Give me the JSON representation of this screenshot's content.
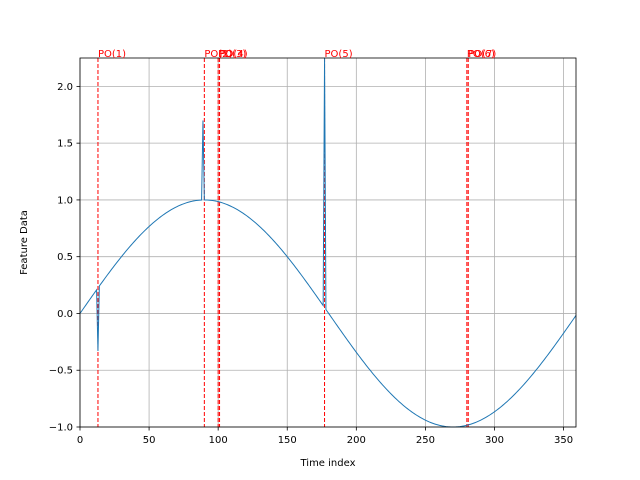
{
  "chart_data": {
    "type": "line",
    "title": "",
    "xlabel": "Time index",
    "ylabel": "Feature Data",
    "xlim": [
      0,
      359
    ],
    "ylim": [
      -1.0,
      2.25
    ],
    "grid": true,
    "x_ticks": [
      0,
      50,
      100,
      150,
      200,
      250,
      300,
      350
    ],
    "y_ticks": [
      -1.0,
      -0.5,
      0.0,
      0.5,
      1.0,
      1.5,
      2.0
    ],
    "y_tick_labels": [
      "−1.0",
      "−0.5",
      "0.0",
      "0.5",
      "1.0",
      "1.5",
      "2.0"
    ],
    "series": [
      {
        "color": "#1f77b4",
        "base": "sin(x degrees)",
        "x": [
          0,
          12,
          13,
          14,
          30,
          60,
          88,
          89,
          90,
          91,
          100,
          120,
          150,
          176,
          177,
          178,
          200,
          250,
          270,
          300,
          330,
          359
        ],
        "y": [
          0.0,
          0.21,
          -0.33,
          0.24,
          0.5,
          0.87,
          1.0,
          1.7,
          1.0,
          1.0,
          0.98,
          0.87,
          0.5,
          0.07,
          2.25,
          0.03,
          -0.34,
          -0.94,
          -1.0,
          -0.87,
          -0.5,
          -0.02
        ]
      }
    ],
    "markers": {
      "color": "#ff0000",
      "positions": [
        13,
        90,
        100,
        101,
        177,
        280,
        281
      ],
      "labels": [
        "PO(1)",
        "PO(2)",
        "PO(3)",
        "PO(4)",
        "PO(5)",
        "PO(6)",
        "PO(7)"
      ]
    }
  }
}
